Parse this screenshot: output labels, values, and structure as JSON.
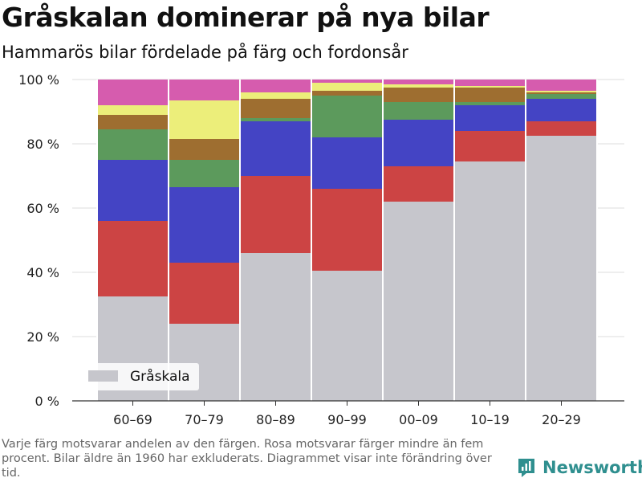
{
  "header": {
    "title": "Gråskalan dominerar på nya bilar",
    "subtitle": "Hammarös bilar fördelade på färg och fordonsår"
  },
  "footnote": "Varje färg motsvarar andelen av den färgen. Rosa motsvarar färger mindre än fem procent. Bilar äldre än 1960 har exkluderats. Diagrammet visar inte förändring över tid.",
  "brand": {
    "name": "Newsworthy",
    "icon": "newsworthy-logo-icon"
  },
  "chart_data": {
    "type": "bar",
    "stacked": true,
    "categories": [
      "60–69",
      "70–79",
      "80–89",
      "90–99",
      "00–09",
      "10–19",
      "20–29"
    ],
    "series": [
      {
        "name": "Gråskala",
        "color": "#c6c6cc",
        "values": [
          32.5,
          24,
          46,
          40.5,
          62,
          74.5,
          82.5
        ]
      },
      {
        "color": "#cc4444",
        "values": [
          23.5,
          19,
          24,
          25.5,
          11,
          9.5,
          4.5
        ]
      },
      {
        "color": "#4444c4",
        "values": [
          19,
          23.5,
          17,
          16,
          14.5,
          8,
          7
        ]
      },
      {
        "color": "#5c9a5c",
        "values": [
          9.5,
          8.5,
          1,
          13,
          5.5,
          1,
          1.5
        ]
      },
      {
        "color": "#9e6e30",
        "values": [
          4.5,
          6.5,
          6,
          1.5,
          4.5,
          4.5,
          0.5
        ]
      },
      {
        "color": "#ecee7a",
        "values": [
          3,
          12,
          2,
          2.5,
          1,
          0.5,
          0.5
        ]
      },
      {
        "color": "#d65cae",
        "values": [
          8,
          6.5,
          4,
          1,
          1.5,
          2,
          3.5
        ]
      }
    ],
    "xlabel": "",
    "ylabel": "",
    "ylim": [
      0,
      100
    ],
    "yticks": [
      "0 %",
      "20 %",
      "40 %",
      "60 %",
      "80 %",
      "100 %"
    ],
    "grid": true,
    "legend": "bottom-left"
  }
}
